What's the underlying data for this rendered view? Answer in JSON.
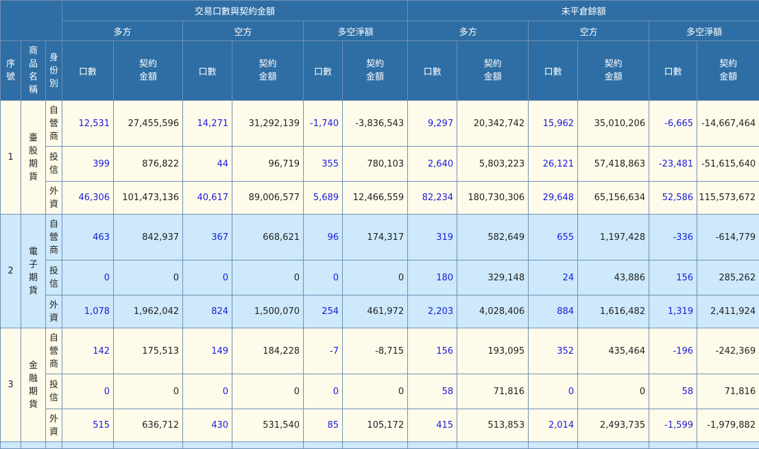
{
  "header": {
    "group_trade": "交易口數與契約金額",
    "group_open": "未平倉餘額",
    "sub_long": "多方",
    "sub_short": "空方",
    "sub_net": "多空淨額",
    "col_seq": "序號",
    "col_product": "商品名稱",
    "col_identity": "身份別",
    "col_volume": "口數",
    "col_amount": "契約金額"
  },
  "rows": [
    {
      "seq": "1",
      "product": "臺股期貨",
      "lines": [
        {
          "identity": "自營商",
          "values": [
            "12,531",
            "27,455,596",
            "14,271",
            "31,292,139",
            "-1,740",
            "-3,836,543",
            "9,297",
            "20,342,742",
            "15,962",
            "35,010,206",
            "-6,665",
            "-14,667,464"
          ]
        },
        {
          "identity": "投信",
          "values": [
            "399",
            "876,822",
            "44",
            "96,719",
            "355",
            "780,103",
            "2,640",
            "5,803,223",
            "26,121",
            "57,418,863",
            "-23,481",
            "-51,615,640"
          ]
        },
        {
          "identity": "外資",
          "values": [
            "46,306",
            "101,473,136",
            "40,617",
            "89,006,577",
            "5,689",
            "12,466,559",
            "82,234",
            "180,730,306",
            "29,648",
            "65,156,634",
            "52,586",
            "115,573,672"
          ]
        }
      ]
    },
    {
      "seq": "2",
      "product": "電子期貨",
      "lines": [
        {
          "identity": "自營商",
          "values": [
            "463",
            "842,937",
            "367",
            "668,621",
            "96",
            "174,317",
            "319",
            "582,649",
            "655",
            "1,197,428",
            "-336",
            "-614,779"
          ]
        },
        {
          "identity": "投信",
          "values": [
            "0",
            "0",
            "0",
            "0",
            "0",
            "0",
            "180",
            "329,148",
            "24",
            "43,886",
            "156",
            "285,262"
          ]
        },
        {
          "identity": "外資",
          "values": [
            "1,078",
            "1,962,042",
            "824",
            "1,500,070",
            "254",
            "461,972",
            "2,203",
            "4,028,406",
            "884",
            "1,616,482",
            "1,319",
            "2,411,924"
          ]
        }
      ]
    },
    {
      "seq": "3",
      "product": "金融期貨",
      "lines": [
        {
          "identity": "自營商",
          "values": [
            "142",
            "175,513",
            "149",
            "184,228",
            "-7",
            "-8,715",
            "156",
            "193,095",
            "352",
            "435,464",
            "-196",
            "-242,369"
          ]
        },
        {
          "identity": "投信",
          "values": [
            "0",
            "0",
            "0",
            "0",
            "0",
            "0",
            "58",
            "71,816",
            "0",
            "0",
            "58",
            "71,816"
          ]
        },
        {
          "identity": "外資",
          "values": [
            "515",
            "636,712",
            "430",
            "531,540",
            "85",
            "105,172",
            "415",
            "513,853",
            "2,014",
            "2,493,735",
            "-1,599",
            "-1,979,882"
          ]
        }
      ]
    }
  ]
}
